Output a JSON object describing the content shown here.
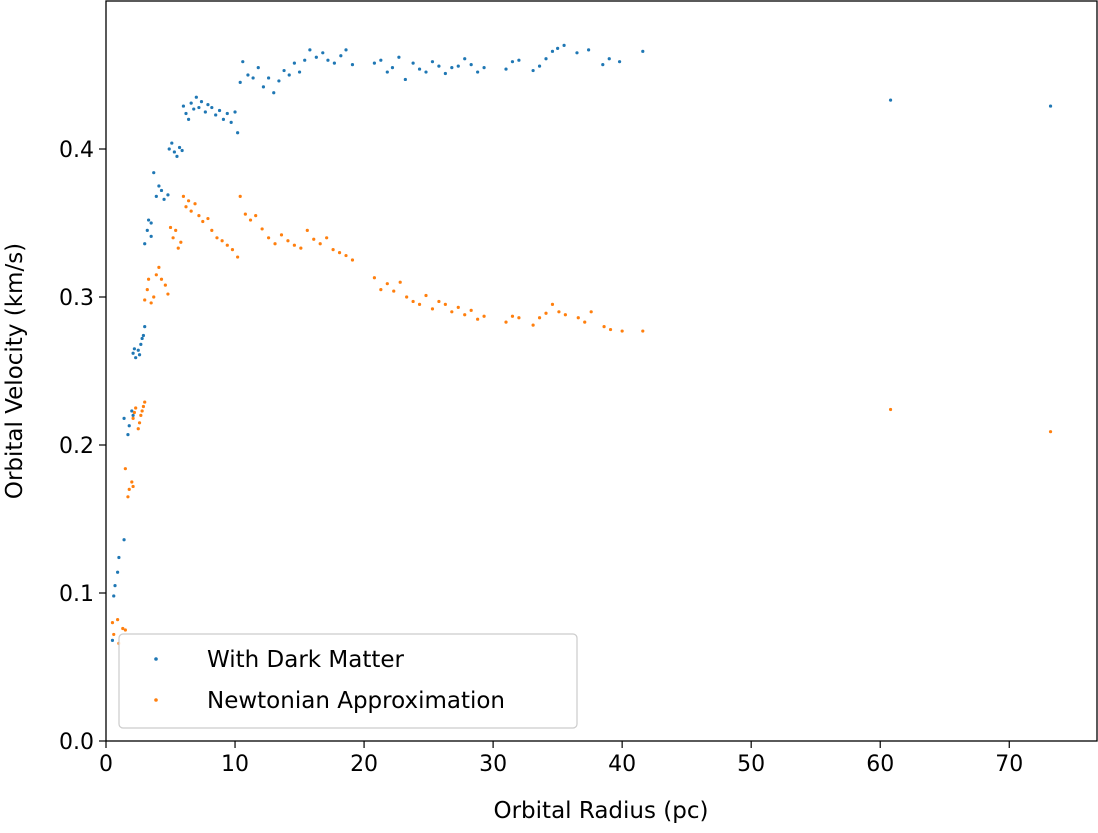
{
  "chart_data": {
    "type": "scatter",
    "title": "",
    "xlabel": "Orbital Radius (pc)",
    "ylabel": "Orbital Velocity (km/s)",
    "xlim": [
      0,
      76.8
    ],
    "ylim": [
      0,
      0.5
    ],
    "xticks": [
      0,
      10,
      20,
      30,
      40,
      50,
      60,
      70
    ],
    "yticks": [
      0.0,
      0.1,
      0.2,
      0.3,
      0.4
    ],
    "xtick_labels": [
      "0",
      "10",
      "20",
      "30",
      "40",
      "50",
      "60",
      "70"
    ],
    "ytick_labels": [
      "0.0",
      "0.1",
      "0.2",
      "0.3",
      "0.4"
    ],
    "grid": false,
    "legend_position": "lower-left",
    "series": [
      {
        "name": "With Dark Matter",
        "color": "#1f77b4",
        "points": [
          [
            0.5,
            0.068
          ],
          [
            0.6,
            0.098
          ],
          [
            0.7,
            0.105
          ],
          [
            0.9,
            0.114
          ],
          [
            1.0,
            0.124
          ],
          [
            1.4,
            0.136
          ],
          [
            1.4,
            0.218
          ],
          [
            1.7,
            0.207
          ],
          [
            1.8,
            0.213
          ],
          [
            2.0,
            0.223
          ],
          [
            2.1,
            0.22
          ],
          [
            2.1,
            0.262
          ],
          [
            2.2,
            0.265
          ],
          [
            2.3,
            0.259
          ],
          [
            2.5,
            0.264
          ],
          [
            2.6,
            0.261
          ],
          [
            2.7,
            0.268
          ],
          [
            2.8,
            0.272
          ],
          [
            2.9,
            0.274
          ],
          [
            3.0,
            0.28
          ],
          [
            3.0,
            0.336
          ],
          [
            3.2,
            0.345
          ],
          [
            3.3,
            0.352
          ],
          [
            3.5,
            0.35
          ],
          [
            3.5,
            0.341
          ],
          [
            3.7,
            0.384
          ],
          [
            3.9,
            0.368
          ],
          [
            4.1,
            0.375
          ],
          [
            4.3,
            0.372
          ],
          [
            4.5,
            0.366
          ],
          [
            4.8,
            0.369
          ],
          [
            4.9,
            0.4
          ],
          [
            5.1,
            0.404
          ],
          [
            5.3,
            0.398
          ],
          [
            5.5,
            0.395
          ],
          [
            5.7,
            0.401
          ],
          [
            5.9,
            0.399
          ],
          [
            6.0,
            0.429
          ],
          [
            6.2,
            0.424
          ],
          [
            6.4,
            0.42
          ],
          [
            6.6,
            0.431
          ],
          [
            6.8,
            0.427
          ],
          [
            7.0,
            0.435
          ],
          [
            7.2,
            0.428
          ],
          [
            7.4,
            0.432
          ],
          [
            7.7,
            0.425
          ],
          [
            7.9,
            0.43
          ],
          [
            8.2,
            0.428
          ],
          [
            8.5,
            0.423
          ],
          [
            8.8,
            0.426
          ],
          [
            9.1,
            0.42
          ],
          [
            9.4,
            0.424
          ],
          [
            9.7,
            0.418
          ],
          [
            10.0,
            0.425
          ],
          [
            10.2,
            0.411
          ],
          [
            10.4,
            0.445
          ],
          [
            10.6,
            0.459
          ],
          [
            11.0,
            0.45
          ],
          [
            11.4,
            0.448
          ],
          [
            11.8,
            0.455
          ],
          [
            12.2,
            0.442
          ],
          [
            12.6,
            0.448
          ],
          [
            13.0,
            0.438
          ],
          [
            13.4,
            0.446
          ],
          [
            13.8,
            0.453
          ],
          [
            14.2,
            0.45
          ],
          [
            14.6,
            0.458
          ],
          [
            15.0,
            0.452
          ],
          [
            15.4,
            0.46
          ],
          [
            15.8,
            0.467
          ],
          [
            16.3,
            0.462
          ],
          [
            16.8,
            0.465
          ],
          [
            17.2,
            0.46
          ],
          [
            17.7,
            0.458
          ],
          [
            18.2,
            0.463
          ],
          [
            18.6,
            0.467
          ],
          [
            19.1,
            0.457
          ],
          [
            20.8,
            0.458
          ],
          [
            21.3,
            0.46
          ],
          [
            21.8,
            0.452
          ],
          [
            22.2,
            0.455
          ],
          [
            22.7,
            0.462
          ],
          [
            23.2,
            0.447
          ],
          [
            23.8,
            0.458
          ],
          [
            24.3,
            0.454
          ],
          [
            24.8,
            0.452
          ],
          [
            25.3,
            0.459
          ],
          [
            25.8,
            0.456
          ],
          [
            26.3,
            0.451
          ],
          [
            26.8,
            0.455
          ],
          [
            27.3,
            0.456
          ],
          [
            27.8,
            0.461
          ],
          [
            28.3,
            0.457
          ],
          [
            28.8,
            0.452
          ],
          [
            29.3,
            0.455
          ],
          [
            31.0,
            0.454
          ],
          [
            31.5,
            0.459
          ],
          [
            32.0,
            0.46
          ],
          [
            33.1,
            0.453
          ],
          [
            33.6,
            0.456
          ],
          [
            34.1,
            0.461
          ],
          [
            34.6,
            0.466
          ],
          [
            35.0,
            0.468
          ],
          [
            35.5,
            0.47
          ],
          [
            36.5,
            0.465
          ],
          [
            37.4,
            0.467
          ],
          [
            38.5,
            0.457
          ],
          [
            39.0,
            0.461
          ],
          [
            39.8,
            0.459
          ],
          [
            41.6,
            0.466
          ],
          [
            60.8,
            0.433
          ],
          [
            73.2,
            0.429
          ]
        ]
      },
      {
        "name": "Newtonian Approximation",
        "color": "#ff7f0e",
        "points": [
          [
            0.5,
            0.08
          ],
          [
            0.6,
            0.072
          ],
          [
            0.9,
            0.082
          ],
          [
            1.0,
            0.066
          ],
          [
            1.3,
            0.076
          ],
          [
            1.5,
            0.075
          ],
          [
            1.5,
            0.184
          ],
          [
            1.7,
            0.165
          ],
          [
            1.8,
            0.17
          ],
          [
            2.0,
            0.175
          ],
          [
            2.1,
            0.172
          ],
          [
            2.1,
            0.218
          ],
          [
            2.2,
            0.222
          ],
          [
            2.3,
            0.225
          ],
          [
            2.5,
            0.211
          ],
          [
            2.6,
            0.215
          ],
          [
            2.7,
            0.22
          ],
          [
            2.8,
            0.223
          ],
          [
            2.9,
            0.226
          ],
          [
            3.0,
            0.229
          ],
          [
            3.0,
            0.298
          ],
          [
            3.2,
            0.305
          ],
          [
            3.3,
            0.312
          ],
          [
            3.5,
            0.296
          ],
          [
            3.7,
            0.3
          ],
          [
            3.9,
            0.315
          ],
          [
            4.1,
            0.32
          ],
          [
            4.3,
            0.312
          ],
          [
            4.6,
            0.308
          ],
          [
            4.8,
            0.302
          ],
          [
            5.0,
            0.347
          ],
          [
            5.2,
            0.34
          ],
          [
            5.4,
            0.345
          ],
          [
            5.6,
            0.333
          ],
          [
            5.8,
            0.337
          ],
          [
            6.0,
            0.368
          ],
          [
            6.2,
            0.361
          ],
          [
            6.4,
            0.365
          ],
          [
            6.6,
            0.358
          ],
          [
            6.9,
            0.363
          ],
          [
            7.2,
            0.355
          ],
          [
            7.5,
            0.351
          ],
          [
            7.9,
            0.353
          ],
          [
            8.2,
            0.345
          ],
          [
            8.6,
            0.34
          ],
          [
            9.0,
            0.338
          ],
          [
            9.4,
            0.335
          ],
          [
            9.8,
            0.332
          ],
          [
            10.2,
            0.327
          ],
          [
            10.4,
            0.368
          ],
          [
            10.8,
            0.356
          ],
          [
            11.2,
            0.352
          ],
          [
            11.6,
            0.355
          ],
          [
            12.1,
            0.346
          ],
          [
            12.6,
            0.34
          ],
          [
            13.1,
            0.336
          ],
          [
            13.6,
            0.342
          ],
          [
            14.1,
            0.338
          ],
          [
            14.6,
            0.335
          ],
          [
            15.1,
            0.333
          ],
          [
            15.6,
            0.345
          ],
          [
            16.1,
            0.339
          ],
          [
            16.6,
            0.336
          ],
          [
            17.1,
            0.34
          ],
          [
            17.6,
            0.332
          ],
          [
            18.1,
            0.33
          ],
          [
            18.6,
            0.328
          ],
          [
            19.1,
            0.325
          ],
          [
            20.8,
            0.313
          ],
          [
            21.3,
            0.305
          ],
          [
            21.8,
            0.309
          ],
          [
            22.3,
            0.304
          ],
          [
            22.8,
            0.31
          ],
          [
            23.3,
            0.3
          ],
          [
            23.8,
            0.297
          ],
          [
            24.3,
            0.295
          ],
          [
            24.8,
            0.301
          ],
          [
            25.3,
            0.292
          ],
          [
            25.8,
            0.297
          ],
          [
            26.3,
            0.295
          ],
          [
            26.8,
            0.29
          ],
          [
            27.3,
            0.293
          ],
          [
            27.8,
            0.288
          ],
          [
            28.3,
            0.291
          ],
          [
            28.8,
            0.285
          ],
          [
            29.3,
            0.287
          ],
          [
            31.0,
            0.283
          ],
          [
            31.5,
            0.287
          ],
          [
            32.0,
            0.286
          ],
          [
            33.1,
            0.281
          ],
          [
            33.6,
            0.286
          ],
          [
            34.1,
            0.289
          ],
          [
            34.6,
            0.295
          ],
          [
            35.1,
            0.29
          ],
          [
            35.6,
            0.288
          ],
          [
            36.6,
            0.286
          ],
          [
            37.1,
            0.283
          ],
          [
            37.6,
            0.29
          ],
          [
            38.6,
            0.28
          ],
          [
            39.1,
            0.278
          ],
          [
            40.0,
            0.277
          ],
          [
            41.6,
            0.277
          ],
          [
            60.8,
            0.224
          ],
          [
            73.2,
            0.209
          ]
        ]
      }
    ]
  }
}
